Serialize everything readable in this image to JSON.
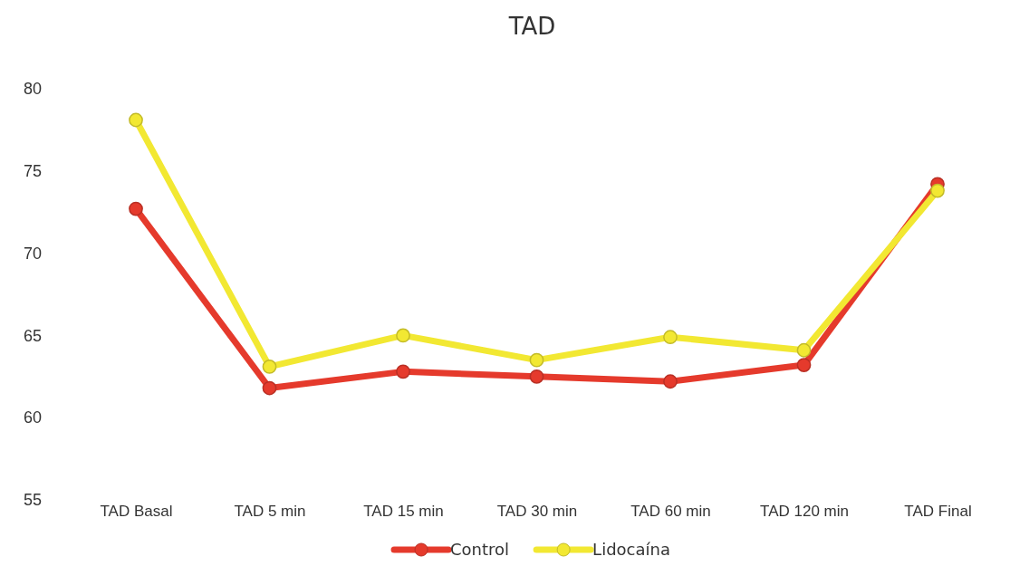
{
  "chart_data": {
    "type": "line",
    "title": "TAD",
    "categories": [
      "TAD Basal",
      "TAD 5 min",
      "TAD 15 min",
      "TAD 30 min",
      "TAD 60 min",
      "TAD 120 min",
      "TAD Final"
    ],
    "series": [
      {
        "name": "Control",
        "color": "#e53a2c",
        "values": [
          72.7,
          61.8,
          62.8,
          62.5,
          62.2,
          63.2,
          74.2
        ]
      },
      {
        "name": "Lidocaína",
        "color": "#f2e832",
        "values": [
          78.1,
          63.1,
          65.0,
          63.5,
          64.9,
          64.1,
          73.8
        ]
      }
    ],
    "ylim": [
      55,
      80
    ],
    "yticks": [
      55,
      60,
      65,
      70,
      75,
      80
    ],
    "grid": false,
    "legend": "bottom",
    "marker": "circle",
    "line_style": "solid"
  }
}
